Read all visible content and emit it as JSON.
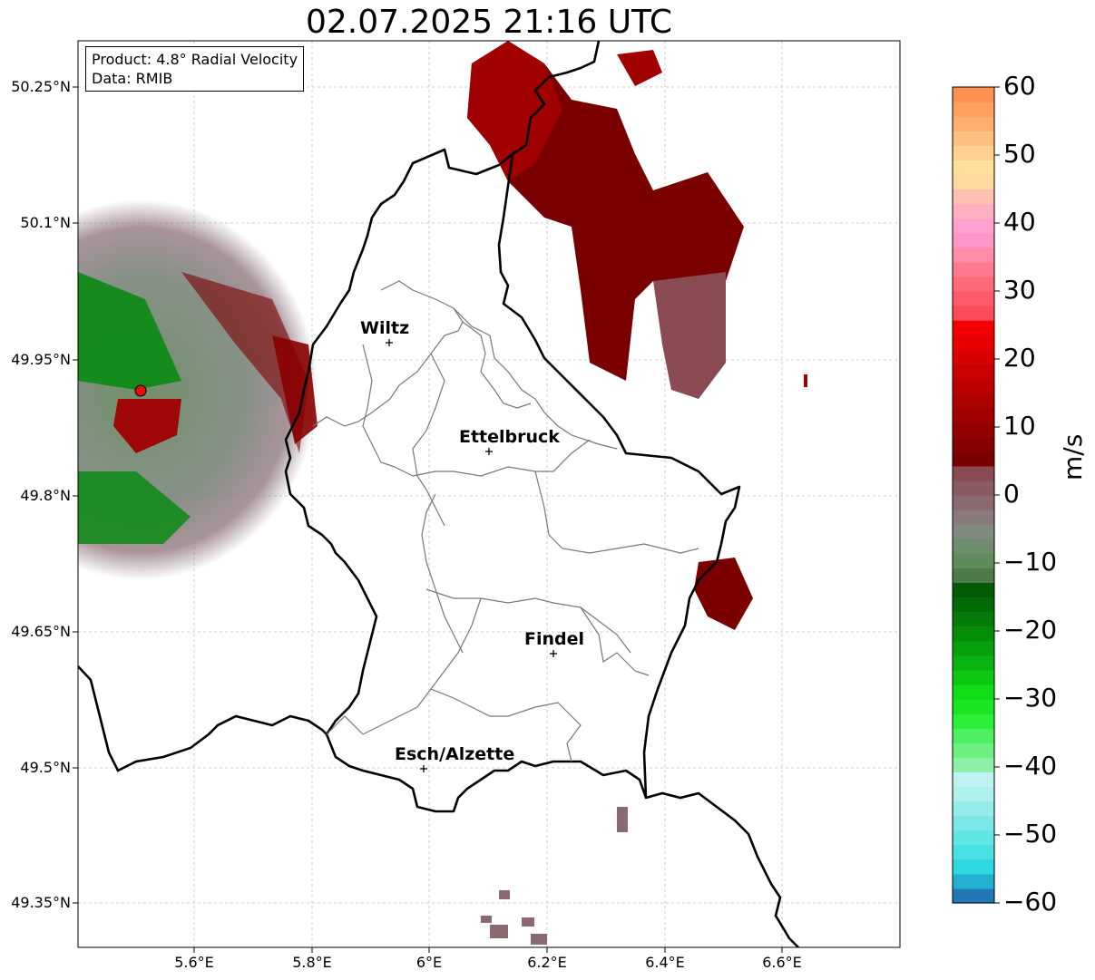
{
  "title": "02.07.2025 21:16 UTC",
  "info_box": {
    "product_line": "Product: 4.8° Radial Velocity",
    "data_line": "Data: RMIB"
  },
  "lat_labels": [
    "50.25°N",
    "50.1°N",
    "49.95°N",
    "49.8°N",
    "49.65°N",
    "49.5°N",
    "49.35°N"
  ],
  "lon_labels": [
    "5.6°E",
    "5.8°E",
    "6°E",
    "6.2°E",
    "6.4°E",
    "6.6°E"
  ],
  "cities": {
    "wiltz": "Wiltz",
    "ettelbruck": "Ettelbruck",
    "findel": "Findel",
    "esch": "Esch/Alzette"
  },
  "colorbar": {
    "unit": "m/s",
    "ticks": [
      "60",
      "50",
      "40",
      "30",
      "20",
      "10",
      "0",
      "−10",
      "−20",
      "−30",
      "−40",
      "−50",
      "−60"
    ],
    "min": -60,
    "max": 60,
    "colors": [
      "#1f77b4",
      "#22b0d0",
      "#2ed8e0",
      "#48e0e0",
      "#60e6e4",
      "#7ae8e6",
      "#96ecea",
      "#aef0ec",
      "#bff2f0",
      "#8ef0a8",
      "#6cf080",
      "#4cf060",
      "#2aee38",
      "#18e620",
      "#10dc18",
      "#0cc814",
      "#0ab410",
      "#08a00c",
      "#068e0a",
      "#057c08",
      "#046a06",
      "#035a05",
      "#4e7a4a",
      "#5e8c5a",
      "#6e8c6e",
      "#7e8a7e",
      "#8a7a7e",
      "#8a6a70",
      "#8a5a62",
      "#8a4a52",
      "#7a0000",
      "#860000",
      "#920000",
      "#a00000",
      "#ae0000",
      "#bc0000",
      "#ca0000",
      "#d80000",
      "#e80000",
      "#f40000",
      "#ff4a5a",
      "#ff5a6a",
      "#ff6a7a",
      "#ff7a8e",
      "#ff8ca8",
      "#ff96c8",
      "#ffa0d0",
      "#ffb0c0",
      "#ffc0b0",
      "#ffd8a0",
      "#ffe098",
      "#ffd090",
      "#ffc080",
      "#ffb070",
      "#ffa060",
      "#ff9050"
    ]
  }
}
